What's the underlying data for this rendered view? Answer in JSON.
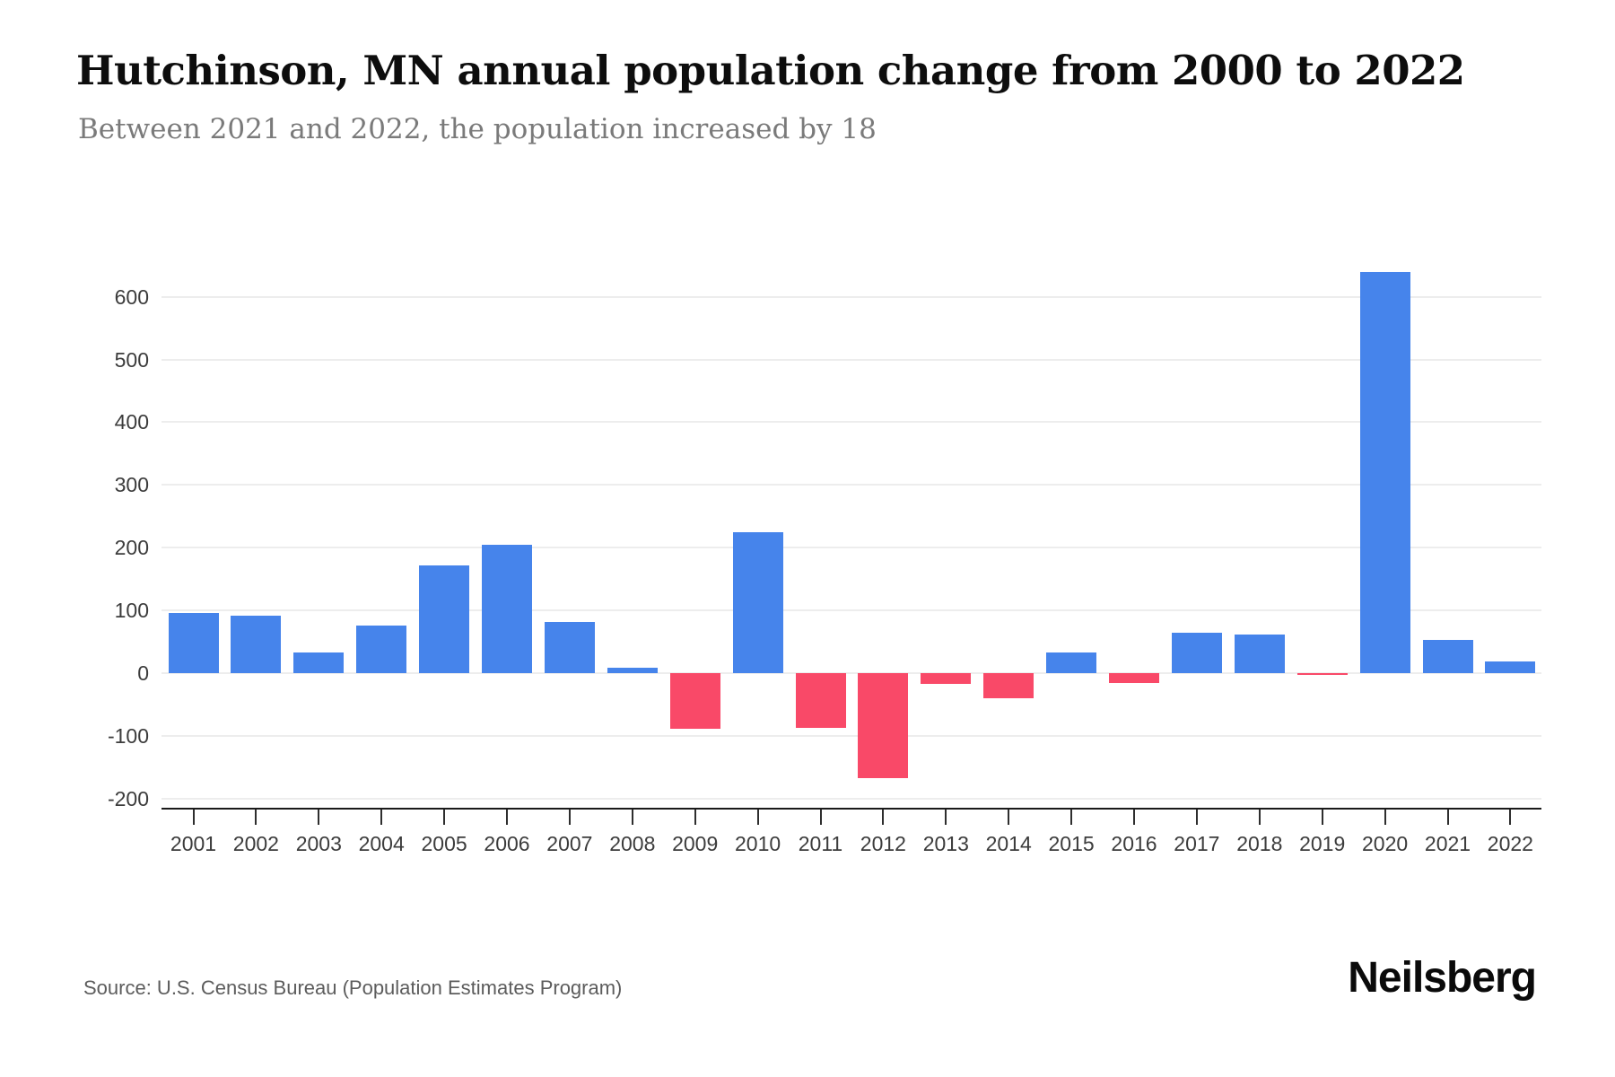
{
  "chart_data": {
    "type": "bar",
    "title": "Hutchinson, MN annual population change from 2000 to 2022",
    "subtitle": "Between 2021 and 2022, the population increased by 18",
    "source": "Source: U.S. Census Bureau (Population Estimates Program)",
    "categories": [
      "2001",
      "2002",
      "2003",
      "2004",
      "2005",
      "2006",
      "2007",
      "2008",
      "2009",
      "2010",
      "2011",
      "2012",
      "2013",
      "2014",
      "2015",
      "2016",
      "2017",
      "2018",
      "2019",
      "2020",
      "2021",
      "2022"
    ],
    "values": [
      95,
      91,
      32,
      75,
      171,
      205,
      81,
      8,
      -89,
      224,
      -88,
      -168,
      -17,
      -41,
      33,
      -16,
      64,
      61,
      -2,
      640,
      53,
      18
    ],
    "y_ticks": [
      600,
      500,
      400,
      300,
      200,
      100,
      0,
      -100,
      -200
    ],
    "ylim": [
      -215,
      730
    ],
    "xlabel": "",
    "ylabel": "",
    "grid": "horizontal-only",
    "legend": "none",
    "colors": {
      "positive_bar": "#4684EB",
      "negative_bar": "#F94968",
      "grid_line": "#ededed",
      "axis_line": "#1a1a1a"
    }
  },
  "brand": {
    "logo_text": "Neilsberg"
  }
}
